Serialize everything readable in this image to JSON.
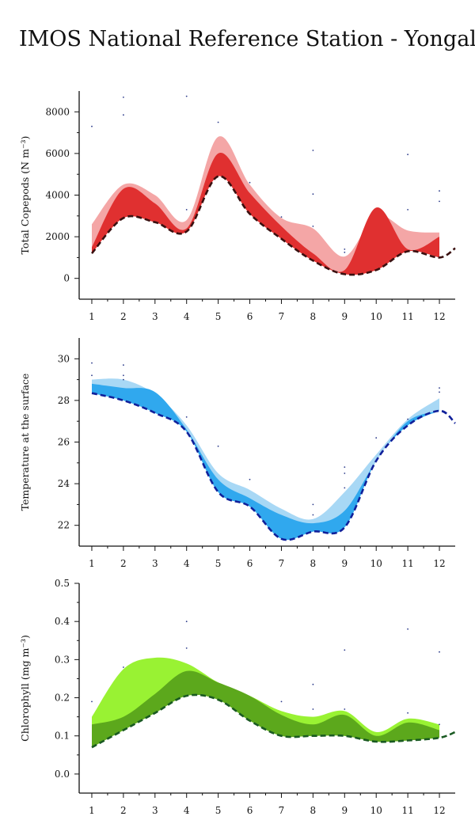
{
  "page": {
    "title": "IMOS National Reference Station - Yongala"
  },
  "chart_data": [
    {
      "type": "area",
      "ylabel": "Total Copepods (N m⁻³)",
      "xlim": [
        0.6,
        12.5
      ],
      "ylim": [
        -1000,
        9000
      ],
      "x_ticks": [
        1,
        2,
        3,
        4,
        5,
        6,
        7,
        8,
        9,
        10,
        11,
        12
      ],
      "y_ticks": [
        0,
        2000,
        4000,
        6000,
        8000
      ],
      "y_minor_ticks": [
        1000,
        3000,
        5000,
        7000
      ],
      "colors": {
        "light": "#f4a6a6",
        "dark": "#e03030",
        "line": "#3a1010",
        "points": "#2b3a8a"
      },
      "upper_light": [
        [
          1,
          2600
        ],
        [
          2,
          4500
        ],
        [
          3,
          4000
        ],
        [
          4,
          2800
        ],
        [
          5,
          6800
        ],
        [
          6,
          4500
        ],
        [
          7,
          2900
        ],
        [
          8,
          2400
        ],
        [
          9,
          1050
        ],
        [
          10,
          3000
        ],
        [
          11,
          2300
        ],
        [
          12,
          2200
        ]
      ],
      "upper_dark": [
        [
          1,
          1500
        ],
        [
          2,
          4300
        ],
        [
          3,
          3600
        ],
        [
          4,
          2400
        ],
        [
          5,
          6000
        ],
        [
          6,
          4100
        ],
        [
          7,
          2500
        ],
        [
          8,
          1200
        ],
        [
          9,
          400
        ],
        [
          10,
          3400
        ],
        [
          11,
          1400
        ],
        [
          12,
          2000
        ]
      ],
      "trend": [
        [
          1,
          1200
        ],
        [
          2,
          2900
        ],
        [
          3,
          2700
        ],
        [
          4,
          2250
        ],
        [
          5,
          4900
        ],
        [
          6,
          3100
        ],
        [
          7,
          1900
        ],
        [
          8,
          850
        ],
        [
          9,
          200
        ],
        [
          10,
          400
        ],
        [
          11,
          1300
        ],
        [
          12,
          1000
        ],
        [
          12.5,
          1450
        ]
      ],
      "observations": [
        [
          1,
          7300
        ],
        [
          2,
          8700
        ],
        [
          2,
          7850
        ],
        [
          4,
          8750
        ],
        [
          5,
          7500
        ],
        [
          6,
          4600
        ],
        [
          4,
          3300
        ],
        [
          7,
          2950
        ],
        [
          8,
          6150
        ],
        [
          8,
          4050
        ],
        [
          8,
          2500
        ],
        [
          9,
          1400
        ],
        [
          9,
          1250
        ],
        [
          11,
          5950
        ],
        [
          11,
          3300
        ],
        [
          12,
          4200
        ],
        [
          12,
          3700
        ]
      ]
    },
    {
      "type": "area",
      "ylabel": "Temperature at the surface",
      "xlim": [
        0.6,
        12.5
      ],
      "ylim": [
        21.0,
        31.0
      ],
      "x_ticks": [
        1,
        2,
        3,
        4,
        5,
        6,
        7,
        8,
        9,
        10,
        11,
        12
      ],
      "y_ticks": [
        22,
        24,
        26,
        28,
        30
      ],
      "y_minor_ticks": [
        23,
        25,
        27,
        29
      ],
      "colors": {
        "light": "#a8d8f5",
        "dark": "#30a8ee",
        "line": "#10209a",
        "points": "#2b3a8a"
      },
      "upper_light": [
        [
          1,
          29.0
        ],
        [
          2,
          29.0
        ],
        [
          3,
          28.3
        ],
        [
          4,
          26.8
        ],
        [
          5,
          24.5
        ],
        [
          6,
          23.7
        ],
        [
          7,
          22.8
        ],
        [
          8,
          22.3
        ],
        [
          9,
          23.6
        ],
        [
          10,
          25.4
        ],
        [
          11,
          27.1
        ],
        [
          12,
          28.1
        ]
      ],
      "upper_dark": [
        [
          1,
          28.8
        ],
        [
          2,
          28.6
        ],
        [
          3,
          28.4
        ],
        [
          4,
          26.6
        ],
        [
          5,
          24.2
        ],
        [
          6,
          23.3
        ],
        [
          7,
          22.5
        ],
        [
          8,
          22.1
        ],
        [
          9,
          22.7
        ],
        [
          10,
          25.1
        ],
        [
          11,
          27.0
        ],
        [
          12,
          27.5
        ]
      ],
      "trend": [
        [
          1,
          28.35
        ],
        [
          2,
          28.0
        ],
        [
          3,
          27.4
        ],
        [
          4,
          26.5
        ],
        [
          5,
          23.6
        ],
        [
          6,
          22.9
        ],
        [
          7,
          21.35
        ],
        [
          8,
          21.7
        ],
        [
          9,
          21.9
        ],
        [
          10,
          25.1
        ],
        [
          11,
          26.8
        ],
        [
          12,
          27.5
        ],
        [
          12.5,
          26.9
        ]
      ],
      "observations": [
        [
          1,
          29.8
        ],
        [
          1,
          29.2
        ],
        [
          2,
          29.7
        ],
        [
          2,
          29.2
        ],
        [
          2,
          29.0
        ],
        [
          4,
          27.2
        ],
        [
          5,
          25.8
        ],
        [
          6,
          24.2
        ],
        [
          8,
          23.0
        ],
        [
          8,
          22.5
        ],
        [
          9,
          24.8
        ],
        [
          9,
          24.5
        ],
        [
          9,
          23.8
        ],
        [
          10,
          26.2
        ],
        [
          11,
          27.1
        ],
        [
          12,
          28.6
        ],
        [
          12,
          28.4
        ]
      ]
    },
    {
      "type": "area",
      "ylabel": "Chlorophyll (mg m⁻³)",
      "xlim": [
        0.6,
        12.5
      ],
      "ylim": [
        -0.05,
        0.5
      ],
      "x_ticks": [
        1,
        2,
        3,
        4,
        5,
        6,
        7,
        8,
        9,
        10,
        11,
        12
      ],
      "y_ticks": [
        0.0,
        0.1,
        0.2,
        0.3,
        0.4,
        0.5
      ],
      "y_tick_labels": [
        "0.0",
        "0.1",
        "0.2",
        "0.3",
        "0.4",
        "0.5"
      ],
      "y_minor_ticks": [
        0.05,
        0.15,
        0.25,
        0.35,
        0.45
      ],
      "colors": {
        "light": "#99f233",
        "dark": "#5ca81c",
        "line": "#1a5a22",
        "points": "#2b3a8a"
      },
      "upper_light": [
        [
          1,
          0.15
        ],
        [
          2,
          0.275
        ],
        [
          3,
          0.305
        ],
        [
          4,
          0.29
        ],
        [
          5,
          0.24
        ],
        [
          6,
          0.205
        ],
        [
          7,
          0.165
        ],
        [
          8,
          0.15
        ],
        [
          9,
          0.165
        ],
        [
          10,
          0.11
        ],
        [
          11,
          0.145
        ],
        [
          12,
          0.13
        ]
      ],
      "upper_dark": [
        [
          1,
          0.13
        ],
        [
          2,
          0.15
        ],
        [
          3,
          0.21
        ],
        [
          4,
          0.27
        ],
        [
          5,
          0.24
        ],
        [
          6,
          0.205
        ],
        [
          7,
          0.155
        ],
        [
          8,
          0.13
        ],
        [
          9,
          0.155
        ],
        [
          10,
          0.1
        ],
        [
          11,
          0.135
        ],
        [
          12,
          0.115
        ]
      ],
      "trend": [
        [
          1,
          0.07
        ],
        [
          2,
          0.115
        ],
        [
          3,
          0.16
        ],
        [
          4,
          0.205
        ],
        [
          5,
          0.195
        ],
        [
          6,
          0.14
        ],
        [
          7,
          0.1
        ],
        [
          8,
          0.1
        ],
        [
          9,
          0.1
        ],
        [
          10,
          0.085
        ],
        [
          11,
          0.088
        ],
        [
          12,
          0.095
        ],
        [
          12.5,
          0.11
        ]
      ],
      "observations": [
        [
          1,
          0.19
        ],
        [
          2,
          0.28
        ],
        [
          4,
          0.4
        ],
        [
          4,
          0.33
        ],
        [
          7,
          0.19
        ],
        [
          8,
          0.235
        ],
        [
          8,
          0.17
        ],
        [
          9,
          0.325
        ],
        [
          9,
          0.17
        ],
        [
          11,
          0.38
        ],
        [
          11,
          0.16
        ],
        [
          12,
          0.32
        ],
        [
          12,
          0.13
        ]
      ]
    }
  ]
}
